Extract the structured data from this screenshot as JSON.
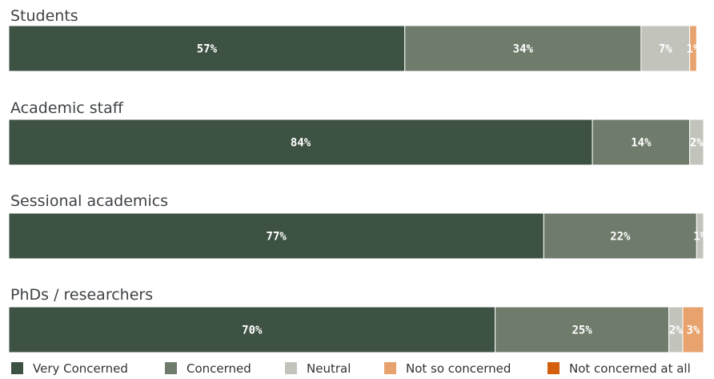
{
  "chart_data": {
    "type": "bar",
    "orientation": "horizontal",
    "stacked": true,
    "value_suffix": "%",
    "categories": [
      "Students",
      "Academic staff",
      "Sessional academics",
      "PhDs / researchers"
    ],
    "series": [
      {
        "name": "Very Concerned",
        "color": "#3e5244",
        "values": [
          57,
          84,
          77,
          70
        ]
      },
      {
        "name": "Concerned",
        "color": "#6f7b6b",
        "values": [
          34,
          14,
          22,
          25
        ]
      },
      {
        "name": "Neutral",
        "color": "#c2c4bc",
        "values": [
          7,
          2,
          1,
          2
        ]
      },
      {
        "name": "Not so concerned",
        "color": "#e8a26e",
        "values": [
          1,
          0,
          0,
          3
        ]
      },
      {
        "name": "Not concerned at all",
        "color": "#d35f0d",
        "values": [
          0,
          0,
          0,
          0
        ]
      }
    ],
    "xlim": [
      0,
      100
    ],
    "grid": false,
    "legend_position": "bottom"
  }
}
